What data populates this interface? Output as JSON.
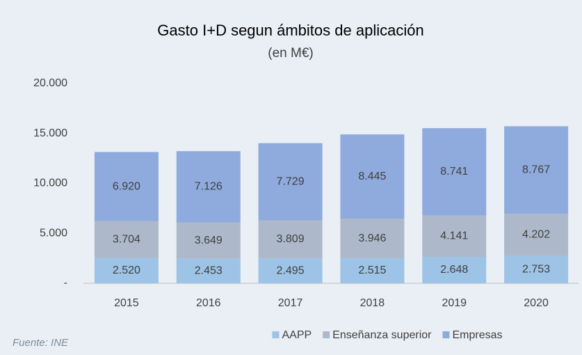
{
  "chart_data": {
    "type": "stacked_bar",
    "title": "Gasto I+D segun ámbitos de aplicación",
    "subtitle": "(en M€)",
    "categories": [
      "2015",
      "2016",
      "2017",
      "2018",
      "2019",
      "2020"
    ],
    "series": [
      {
        "name": "AAPP",
        "color": "#9dc3e6",
        "values": [
          2520,
          2453,
          2495,
          2515,
          2648,
          2753
        ],
        "value_labels": [
          "2.520",
          "2.453",
          "2.495",
          "2.515",
          "2.648",
          "2.753"
        ]
      },
      {
        "name": "Enseñanza superior",
        "color": "#adb9ca",
        "values": [
          3704,
          3649,
          3809,
          3946,
          4141,
          4202
        ],
        "value_labels": [
          "3.704",
          "3.649",
          "3.809",
          "3.946",
          "4.141",
          "4.202"
        ]
      },
      {
        "name": "Empresas",
        "color": "#8faadc",
        "values": [
          6920,
          7126,
          7729,
          8445,
          8741,
          8767
        ],
        "value_labels": [
          "6.920",
          "7.126",
          "7.729",
          "8.445",
          "8.741",
          "8.767"
        ]
      }
    ],
    "ylim": [
      0,
      20000
    ],
    "yticks": [
      {
        "value": 0,
        "label": "-"
      },
      {
        "value": 5000,
        "label": "5.000"
      },
      {
        "value": 10000,
        "label": "10.000"
      },
      {
        "value": 15000,
        "label": "15.000"
      },
      {
        "value": 20000,
        "label": "20.000"
      }
    ],
    "grid": false,
    "legend": "bottom",
    "source": "Fuente: INE"
  }
}
